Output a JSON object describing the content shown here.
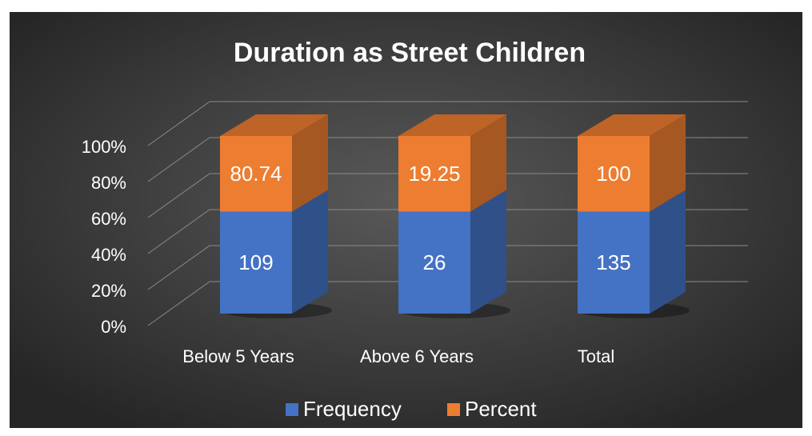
{
  "chart_data": {
    "type": "bar",
    "stacking": "percent",
    "title": "Duration as Street Children",
    "categories": [
      "Below 5 Years",
      "Above 6 Years",
      "Total"
    ],
    "series": [
      {
        "name": "Frequency",
        "color": "#4472c4",
        "values": [
          109,
          26,
          135
        ]
      },
      {
        "name": "Percent",
        "color": "#ed7d31",
        "values": [
          80.74,
          19.25,
          100
        ]
      }
    ],
    "ylim": [
      0,
      100
    ],
    "yticks": [
      {
        "value": 0,
        "label": "0%"
      },
      {
        "value": 20,
        "label": "20%"
      },
      {
        "value": 40,
        "label": "40%"
      },
      {
        "value": 60,
        "label": "60%"
      },
      {
        "value": 80,
        "label": "80%"
      },
      {
        "value": 100,
        "label": "100%"
      }
    ],
    "grid": true,
    "legend": "bottom"
  }
}
